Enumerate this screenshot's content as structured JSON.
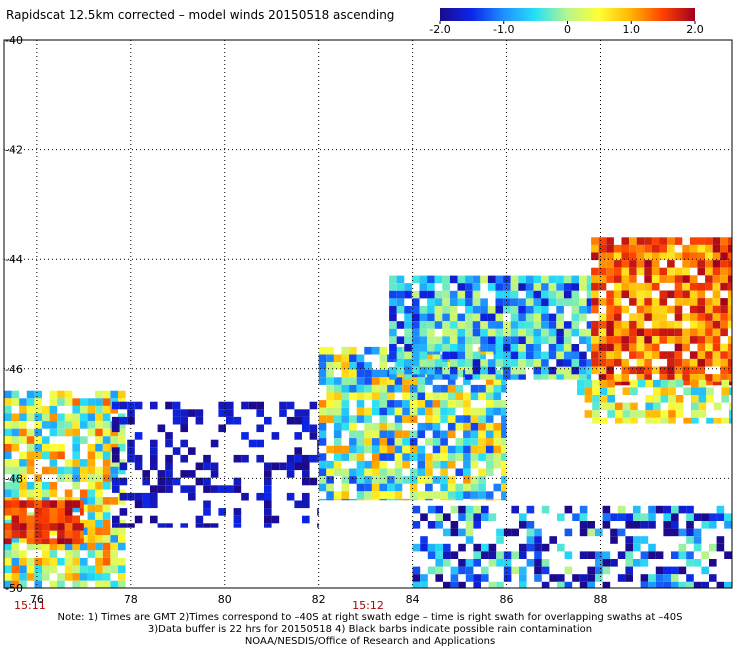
{
  "chart_data": {
    "type": "heatmap",
    "title": "Rapidscat 12.5km corrected – model winds 20150518 ascending",
    "x_ticks": [
      "76",
      "78",
      "80",
      "82",
      "84",
      "86",
      "88"
    ],
    "y_ticks": [
      "-40",
      "-42",
      "-44",
      "-46",
      "-48",
      "-50"
    ],
    "xlim": [
      75.3,
      90.8
    ],
    "ylim": [
      -50,
      -40
    ],
    "grid": true,
    "colorbar": {
      "ticks": [
        "-2.0",
        "-1.0",
        "0",
        "1.0",
        "2.0"
      ],
      "range": [
        -2.0,
        2.0
      ],
      "stops": [
        "#1c0a8c",
        "#0b26ea",
        "#1e90ff",
        "#27e0f5",
        "#b8f58c",
        "#ffff33",
        "#ffb300",
        "#ff4000",
        "#a0001e"
      ]
    },
    "time_labels": [
      {
        "text": "15:11",
        "lon": 75.3
      },
      {
        "text": "15:12",
        "lon": 82.5
      }
    ],
    "regions": [
      {
        "name": "west-patch",
        "lon": [
          75.3,
          77.9
        ],
        "lat": [
          -50,
          -46.4
        ],
        "center": 0.2,
        "spread": 1.2,
        "density": 0.8
      },
      {
        "name": "west-hot-core",
        "lon": [
          75.3,
          77.0
        ],
        "lat": [
          -49.2,
          -48.4
        ],
        "center": 1.6,
        "spread": 0.4,
        "density": 0.9
      },
      {
        "name": "scattered-blue",
        "lon": [
          77.6,
          82.0
        ],
        "lat": [
          -48.9,
          -46.6
        ],
        "center": -1.8,
        "spread": 0.3,
        "density": 0.35
      },
      {
        "name": "central-swath",
        "lon": [
          82.0,
          86.0
        ],
        "lat": [
          -48.4,
          -45.6
        ],
        "center": -0.1,
        "spread": 1.3,
        "density": 0.85
      },
      {
        "name": "east-swath",
        "lon": [
          83.5,
          87.8
        ],
        "lat": [
          -46.2,
          -44.3
        ],
        "center": -0.8,
        "spread": 1.0,
        "density": 0.9
      },
      {
        "name": "east-hot",
        "lon": [
          87.8,
          90.8
        ],
        "lat": [
          -46.3,
          -43.6
        ],
        "center": 1.3,
        "spread": 0.7,
        "density": 0.9
      },
      {
        "name": "east-lower",
        "lon": [
          87.5,
          90.8
        ],
        "lat": [
          -47.0,
          -46.2
        ],
        "center": 0.2,
        "spread": 1.0,
        "density": 0.7
      },
      {
        "name": "south-east-patch",
        "lon": [
          84.0,
          90.8
        ],
        "lat": [
          -50,
          -48.5
        ],
        "center": -1.2,
        "spread": 1.3,
        "density": 0.5
      }
    ]
  },
  "notes": [
    "Note: 1) Times are GMT 2)Times correspond to –40S at right swath edge – time is right swath for overlapping swaths at –40S",
    "3)Data buffer is 22 hrs for 20150518 4) Black barbs indicate possible rain contamination",
    "NOAA/NESDIS/Office of Research and Applications"
  ]
}
